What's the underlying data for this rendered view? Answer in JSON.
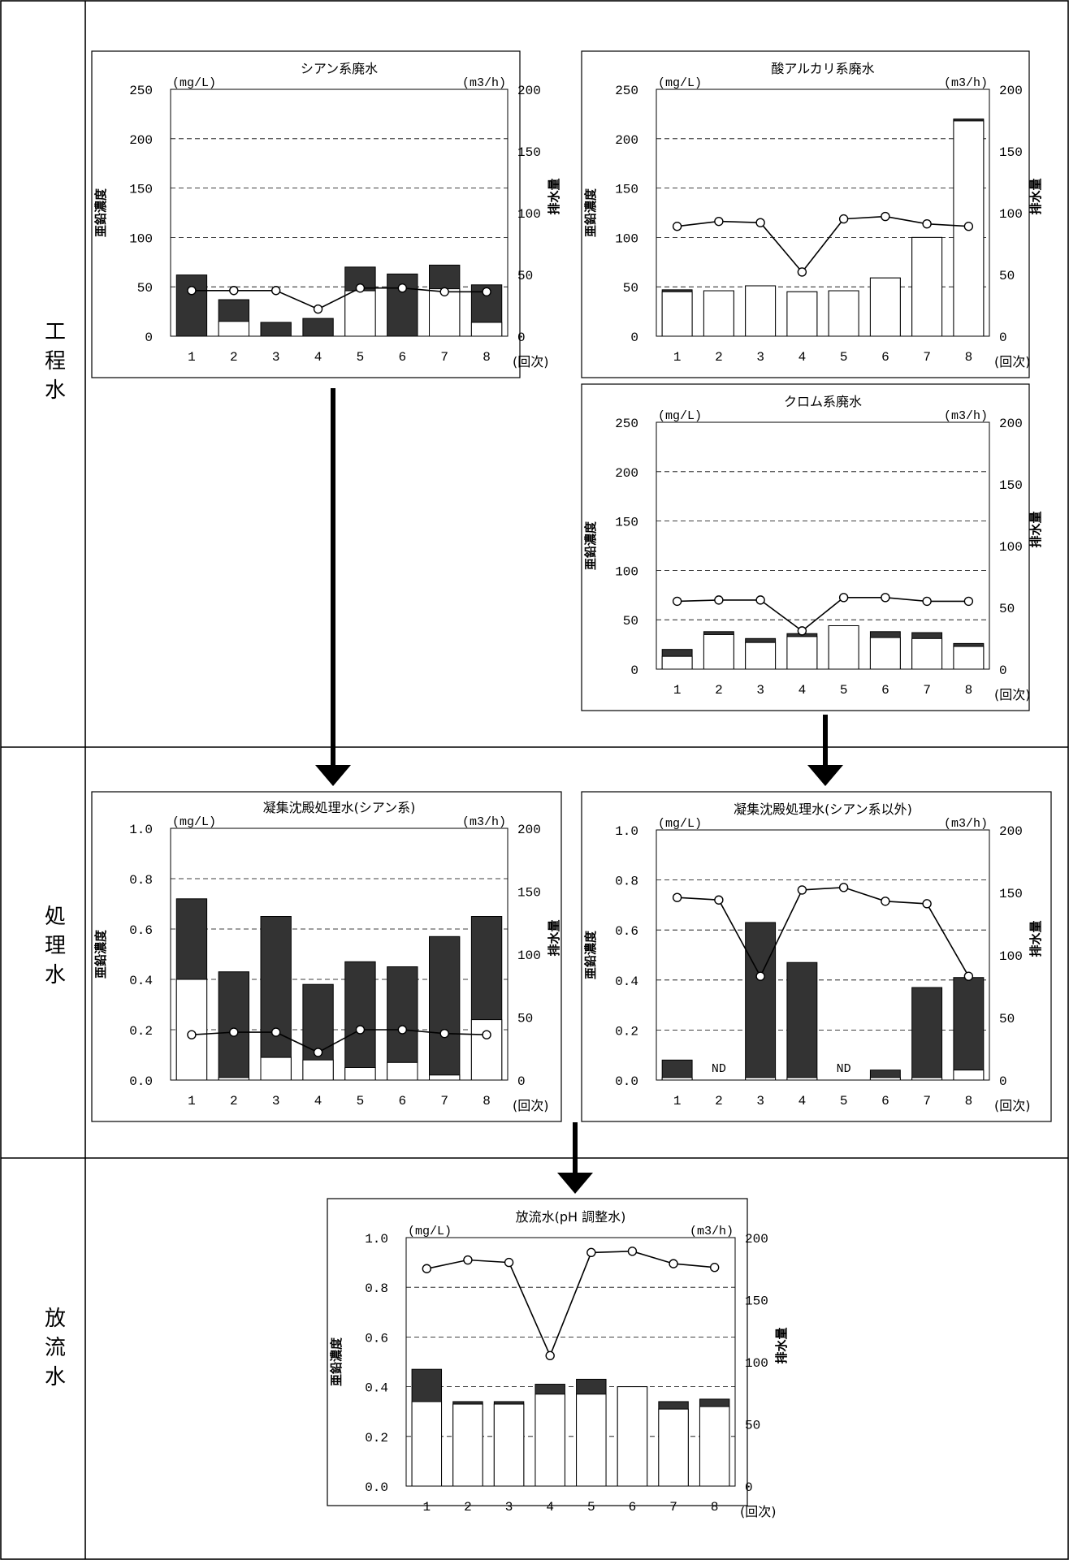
{
  "sections": [
    {
      "id": "process",
      "label": "工程水"
    },
    {
      "id": "treated",
      "label": "処理水"
    },
    {
      "id": "discharge",
      "label": "放流水"
    }
  ],
  "colors": {
    "bar_dark": "#333333",
    "bar_light": "#ffffff",
    "line": "#000000"
  },
  "chart_data": [
    {
      "id": "cyan",
      "type": "bar",
      "title": "シアン系廃水",
      "left_unit": "(mg/L)",
      "right_unit": "(m3/h)",
      "ylabel": "亜鉛濃度",
      "y2label": "排水量",
      "xunit": "(回次)",
      "categories": [
        "1",
        "2",
        "3",
        "4",
        "5",
        "6",
        "7",
        "8"
      ],
      "ylim": [
        0,
        250
      ],
      "y_ticks": [
        "0",
        "50",
        "100",
        "150",
        "200",
        "250"
      ],
      "y2lim": [
        0,
        200
      ],
      "y2_ticks": [
        "0",
        "50",
        "100",
        "150",
        "200"
      ],
      "grid": true,
      "series": [
        {
          "kind": "bar_total",
          "values": [
            62,
            37,
            14,
            18,
            70,
            63,
            72,
            52
          ]
        },
        {
          "kind": "bar_base",
          "values": [
            0,
            15,
            0,
            0,
            46,
            0,
            48,
            14
          ]
        },
        {
          "kind": "line",
          "axis": "right",
          "values": [
            37,
            37,
            37,
            22,
            39,
            39,
            36,
            36
          ]
        }
      ],
      "labels": []
    },
    {
      "id": "acid",
      "type": "bar",
      "title": "酸アルカリ系廃水",
      "left_unit": "(mg/L)",
      "right_unit": "(m3/h)",
      "ylabel": "亜鉛濃度",
      "y2label": "排水量",
      "xunit": "(回次)",
      "categories": [
        "1",
        "2",
        "3",
        "4",
        "5",
        "6",
        "7",
        "8"
      ],
      "ylim": [
        0,
        250
      ],
      "y_ticks": [
        "0",
        "50",
        "100",
        "150",
        "200",
        "250"
      ],
      "y2lim": [
        0,
        200
      ],
      "y2_ticks": [
        "0",
        "50",
        "100",
        "150",
        "200"
      ],
      "grid": true,
      "series": [
        {
          "kind": "bar_total",
          "values": [
            47,
            46,
            51,
            45,
            46,
            59,
            100,
            220
          ]
        },
        {
          "kind": "bar_base",
          "values": [
            45,
            46,
            51,
            45,
            46,
            59,
            100,
            218
          ]
        },
        {
          "kind": "line",
          "axis": "right",
          "values": [
            89,
            93,
            92,
            52,
            95,
            97,
            91,
            89
          ]
        }
      ],
      "labels": []
    },
    {
      "id": "chrome",
      "type": "bar",
      "title": "クロム系廃水",
      "left_unit": "(mg/L)",
      "right_unit": "(m3/h)",
      "ylabel": "亜鉛濃度",
      "y2label": "排水量",
      "xunit": "(回次)",
      "categories": [
        "1",
        "2",
        "3",
        "4",
        "5",
        "6",
        "7",
        "8"
      ],
      "ylim": [
        0,
        250
      ],
      "y_ticks": [
        "0",
        "50",
        "100",
        "150",
        "200",
        "250"
      ],
      "y2lim": [
        0,
        200
      ],
      "y2_ticks": [
        "0",
        "50",
        "100",
        "150",
        "200"
      ],
      "grid": true,
      "series": [
        {
          "kind": "bar_total",
          "values": [
            20,
            38,
            31,
            36,
            44,
            38,
            37,
            26
          ]
        },
        {
          "kind": "bar_base",
          "values": [
            13,
            35,
            27,
            33,
            44,
            32,
            31,
            23
          ]
        },
        {
          "kind": "line",
          "axis": "right",
          "values": [
            55,
            56,
            56,
            31,
            58,
            58,
            55,
            55
          ]
        }
      ],
      "labels": []
    },
    {
      "id": "coag_cyan",
      "type": "bar",
      "title": "凝集沈殿処理水(シアン系)",
      "left_unit": "(mg/L)",
      "right_unit": "(m3/h)",
      "ylabel": "亜鉛濃度",
      "y2label": "排水量",
      "xunit": "(回次)",
      "categories": [
        "1",
        "2",
        "3",
        "4",
        "5",
        "6",
        "7",
        "8"
      ],
      "ylim": [
        0,
        1.0
      ],
      "y_ticks": [
        "0.0",
        "0.2",
        "0.4",
        "0.6",
        "0.8",
        "1.0"
      ],
      "y2lim": [
        0,
        200
      ],
      "y2_ticks": [
        "0",
        "50",
        "100",
        "150",
        "200"
      ],
      "grid": true,
      "series": [
        {
          "kind": "bar_total",
          "values": [
            0.72,
            0.43,
            0.65,
            0.38,
            0.47,
            0.45,
            0.57,
            0.65
          ]
        },
        {
          "kind": "bar_base",
          "values": [
            0.4,
            0.01,
            0.09,
            0.08,
            0.05,
            0.07,
            0.02,
            0.24
          ]
        },
        {
          "kind": "line",
          "axis": "right",
          "values": [
            36,
            38,
            38,
            22,
            40,
            40,
            37,
            36
          ]
        }
      ],
      "labels": []
    },
    {
      "id": "coag_other",
      "type": "bar",
      "title": "凝集沈殿処理水(シアン系以外)",
      "left_unit": "(mg/L)",
      "right_unit": "(m3/h)",
      "ylabel": "亜鉛濃度",
      "y2label": "排水量",
      "xunit": "(回次)",
      "categories": [
        "1",
        "2",
        "3",
        "4",
        "5",
        "6",
        "7",
        "8"
      ],
      "ylim": [
        0,
        1.0
      ],
      "y_ticks": [
        "0.0",
        "0.2",
        "0.4",
        "0.6",
        "0.8",
        "1.0"
      ],
      "y2lim": [
        0,
        200
      ],
      "y2_ticks": [
        "0",
        "50",
        "100",
        "150",
        "200"
      ],
      "grid": true,
      "series": [
        {
          "kind": "bar_total",
          "values": [
            0.08,
            0,
            0.63,
            0.47,
            0,
            0.04,
            0.37,
            0.41
          ]
        },
        {
          "kind": "bar_base",
          "values": [
            0.01,
            0,
            0.01,
            0.01,
            0,
            0.01,
            0.01,
            0.04
          ]
        },
        {
          "kind": "line",
          "axis": "right",
          "values": [
            146,
            144,
            83,
            152,
            154,
            143,
            141,
            83
          ]
        }
      ],
      "labels": [
        {
          "category": "2",
          "text": "ND"
        },
        {
          "category": "5",
          "text": "ND"
        }
      ]
    },
    {
      "id": "effluent",
      "type": "bar",
      "title": "放流水(pH 調整水)",
      "left_unit": "(mg/L)",
      "right_unit": "(m3/h)",
      "ylabel": "亜鉛濃度",
      "y2label": "排水量",
      "xunit": "(回次)",
      "categories": [
        "1",
        "2",
        "3",
        "4",
        "5",
        "6",
        "7",
        "8"
      ],
      "ylim": [
        0,
        1.0
      ],
      "y_ticks": [
        "0.0",
        "0.2",
        "0.4",
        "0.6",
        "0.8",
        "1.0"
      ],
      "y2lim": [
        0,
        200
      ],
      "y2_ticks": [
        "0",
        "50",
        "100",
        "150",
        "200"
      ],
      "grid": true,
      "series": [
        {
          "kind": "bar_total",
          "values": [
            0.47,
            0.34,
            0.34,
            0.41,
            0.43,
            0.4,
            0.34,
            0.35
          ]
        },
        {
          "kind": "bar_base",
          "values": [
            0.34,
            0.33,
            0.33,
            0.37,
            0.37,
            0.4,
            0.31,
            0.32
          ]
        },
        {
          "kind": "line",
          "axis": "right",
          "values": [
            175,
            182,
            180,
            105,
            188,
            189,
            179,
            176
          ]
        }
      ],
      "labels": []
    }
  ]
}
